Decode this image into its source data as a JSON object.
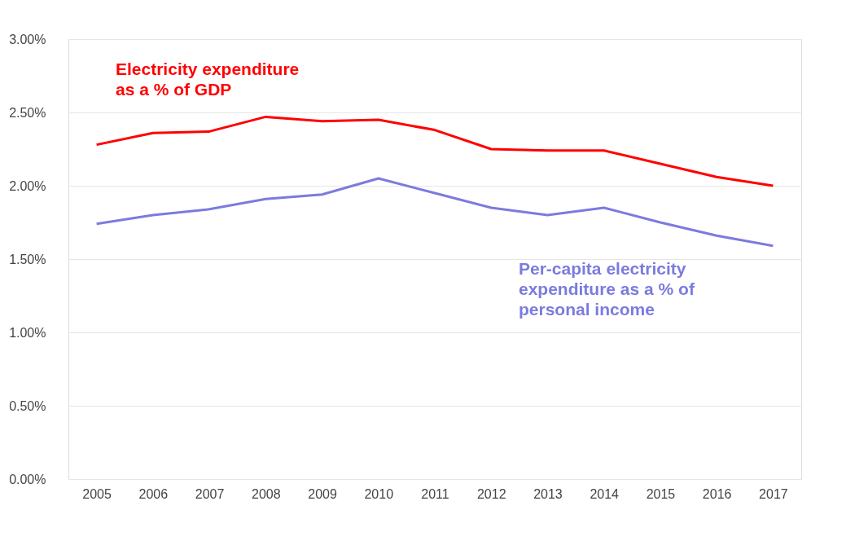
{
  "chart_data": {
    "type": "line",
    "categories": [
      "2005",
      "2006",
      "2007",
      "2008",
      "2009",
      "2010",
      "2011",
      "2012",
      "2013",
      "2014",
      "2015",
      "2016",
      "2017"
    ],
    "series": [
      {
        "name": "Electricity expenditure as a % of GDP",
        "color": "#ff0000",
        "values": [
          2.28,
          2.36,
          2.37,
          2.47,
          2.44,
          2.45,
          2.38,
          2.25,
          2.24,
          2.24,
          2.15,
          2.06,
          2.0
        ]
      },
      {
        "name": "Per-capita electricity expenditure as a % of personal income",
        "color": "#7b7bdf",
        "values": [
          1.74,
          1.8,
          1.84,
          1.91,
          1.94,
          2.05,
          1.95,
          1.85,
          1.8,
          1.85,
          1.75,
          1.66,
          1.59
        ]
      }
    ],
    "ylim": [
      0,
      3
    ],
    "yticks": [
      {
        "value": 0,
        "label": "0.00%"
      },
      {
        "value": 0.5,
        "label": "0.50%"
      },
      {
        "value": 1,
        "label": "1.00%"
      },
      {
        "value": 1.5,
        "label": "1.50%"
      },
      {
        "value": 2,
        "label": "2.00%"
      },
      {
        "value": 2.5,
        "label": "2.50%"
      },
      {
        "value": 3,
        "label": "3.00%"
      }
    ],
    "grid": "y",
    "marker": "none",
    "line_style": "solid"
  }
}
